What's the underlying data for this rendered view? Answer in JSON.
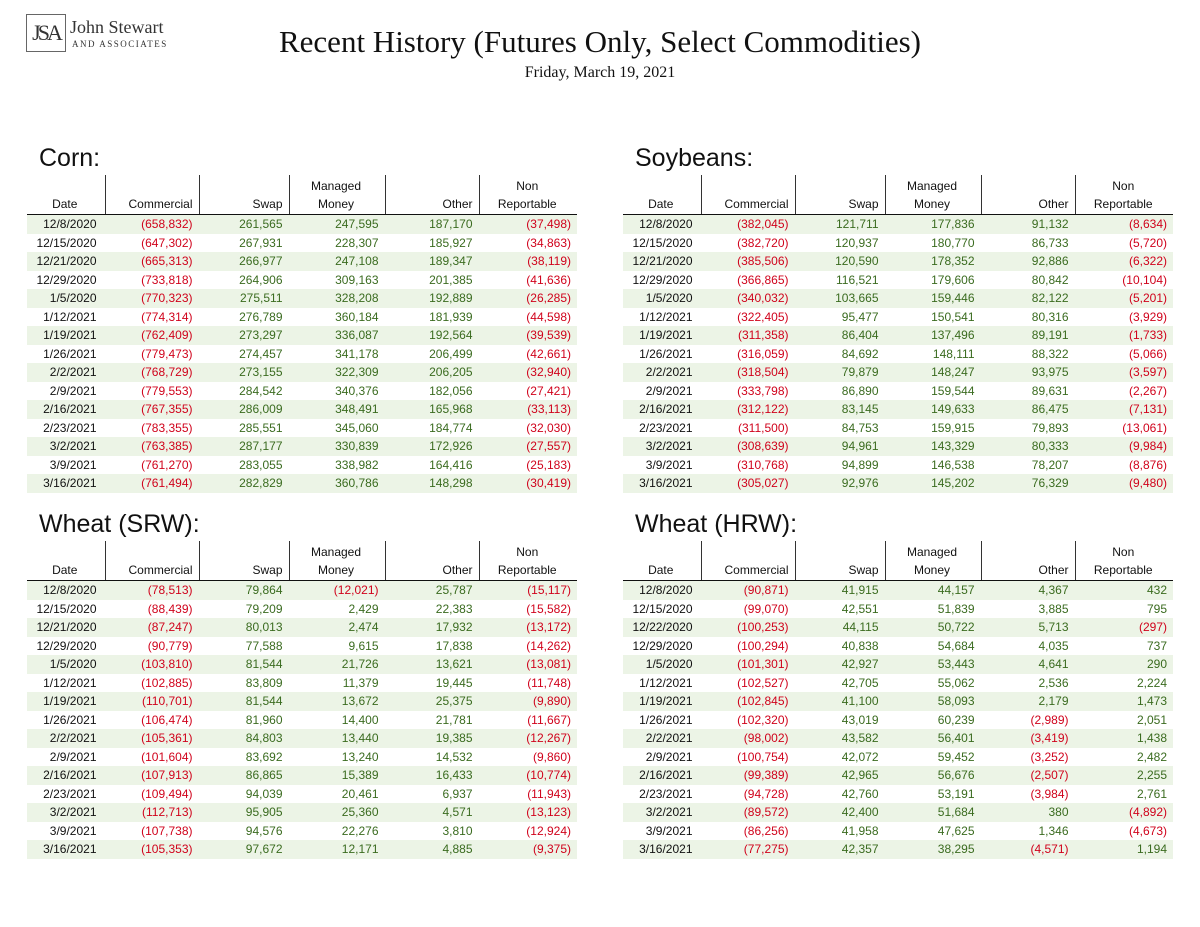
{
  "logo": {
    "mark": "JSA",
    "name": "John Stewart",
    "sub": "AND ASSOCIATES"
  },
  "title": "Recent History (Futures Only, Select Commodities)",
  "subtitle": "Friday, March 19, 2021",
  "colors": {
    "negative": "#d0021b",
    "positive": "#3a6b1f",
    "band": "#ecf4e6"
  },
  "headers": {
    "date": "Date",
    "commercial": "Commercial",
    "swap": "Swap",
    "managed_1": "Managed",
    "managed_2": "Money",
    "other": "Other",
    "nonrep_1": "Non",
    "nonrep_2": "Reportable"
  },
  "tables": [
    {
      "id": "corn",
      "title": "Corn:",
      "rows": [
        [
          "12/8/2020",
          "(658,832)",
          "261,565",
          "247,595",
          "187,170",
          "(37,498)"
        ],
        [
          "12/15/2020",
          "(647,302)",
          "267,931",
          "228,307",
          "185,927",
          "(34,863)"
        ],
        [
          "12/21/2020",
          "(665,313)",
          "266,977",
          "247,108",
          "189,347",
          "(38,119)"
        ],
        [
          "12/29/2020",
          "(733,818)",
          "264,906",
          "309,163",
          "201,385",
          "(41,636)"
        ],
        [
          "1/5/2020",
          "(770,323)",
          "275,511",
          "328,208",
          "192,889",
          "(26,285)"
        ],
        [
          "1/12/2021",
          "(774,314)",
          "276,789",
          "360,184",
          "181,939",
          "(44,598)"
        ],
        [
          "1/19/2021",
          "(762,409)",
          "273,297",
          "336,087",
          "192,564",
          "(39,539)"
        ],
        [
          "1/26/2021",
          "(779,473)",
          "274,457",
          "341,178",
          "206,499",
          "(42,661)"
        ],
        [
          "2/2/2021",
          "(768,729)",
          "273,155",
          "322,309",
          "206,205",
          "(32,940)"
        ],
        [
          "2/9/2021",
          "(779,553)",
          "284,542",
          "340,376",
          "182,056",
          "(27,421)"
        ],
        [
          "2/16/2021",
          "(767,355)",
          "286,009",
          "348,491",
          "165,968",
          "(33,113)"
        ],
        [
          "2/23/2021",
          "(783,355)",
          "285,551",
          "345,060",
          "184,774",
          "(32,030)"
        ],
        [
          "3/2/2021",
          "(763,385)",
          "287,177",
          "330,839",
          "172,926",
          "(27,557)"
        ],
        [
          "3/9/2021",
          "(761,270)",
          "283,055",
          "338,982",
          "164,416",
          "(25,183)"
        ],
        [
          "3/16/2021",
          "(761,494)",
          "282,829",
          "360,786",
          "148,298",
          "(30,419)"
        ]
      ]
    },
    {
      "id": "soybeans",
      "title": "Soybeans:",
      "rows": [
        [
          "12/8/2020",
          "(382,045)",
          "121,711",
          "177,836",
          "91,132",
          "(8,634)"
        ],
        [
          "12/15/2020",
          "(382,720)",
          "120,937",
          "180,770",
          "86,733",
          "(5,720)"
        ],
        [
          "12/21/2020",
          "(385,506)",
          "120,590",
          "178,352",
          "92,886",
          "(6,322)"
        ],
        [
          "12/29/2020",
          "(366,865)",
          "116,521",
          "179,606",
          "80,842",
          "(10,104)"
        ],
        [
          "1/5/2020",
          "(340,032)",
          "103,665",
          "159,446",
          "82,122",
          "(5,201)"
        ],
        [
          "1/12/2021",
          "(322,405)",
          "95,477",
          "150,541",
          "80,316",
          "(3,929)"
        ],
        [
          "1/19/2021",
          "(311,358)",
          "86,404",
          "137,496",
          "89,191",
          "(1,733)"
        ],
        [
          "1/26/2021",
          "(316,059)",
          "84,692",
          "148,111",
          "88,322",
          "(5,066)"
        ],
        [
          "2/2/2021",
          "(318,504)",
          "79,879",
          "148,247",
          "93,975",
          "(3,597)"
        ],
        [
          "2/9/2021",
          "(333,798)",
          "86,890",
          "159,544",
          "89,631",
          "(2,267)"
        ],
        [
          "2/16/2021",
          "(312,122)",
          "83,145",
          "149,633",
          "86,475",
          "(7,131)"
        ],
        [
          "2/23/2021",
          "(311,500)",
          "84,753",
          "159,915",
          "79,893",
          "(13,061)"
        ],
        [
          "3/2/2021",
          "(308,639)",
          "94,961",
          "143,329",
          "80,333",
          "(9,984)"
        ],
        [
          "3/9/2021",
          "(310,768)",
          "94,899",
          "146,538",
          "78,207",
          "(8,876)"
        ],
        [
          "3/16/2021",
          "(305,027)",
          "92,976",
          "145,202",
          "76,329",
          "(9,480)"
        ]
      ]
    },
    {
      "id": "wheat-srw",
      "title": "Wheat (SRW):",
      "rows": [
        [
          "12/8/2020",
          "(78,513)",
          "79,864",
          "(12,021)",
          "25,787",
          "(15,117)"
        ],
        [
          "12/15/2020",
          "(88,439)",
          "79,209",
          "2,429",
          "22,383",
          "(15,582)"
        ],
        [
          "12/21/2020",
          "(87,247)",
          "80,013",
          "2,474",
          "17,932",
          "(13,172)"
        ],
        [
          "12/29/2020",
          "(90,779)",
          "77,588",
          "9,615",
          "17,838",
          "(14,262)"
        ],
        [
          "1/5/2020",
          "(103,810)",
          "81,544",
          "21,726",
          "13,621",
          "(13,081)"
        ],
        [
          "1/12/2021",
          "(102,885)",
          "83,809",
          "11,379",
          "19,445",
          "(11,748)"
        ],
        [
          "1/19/2021",
          "(110,701)",
          "81,544",
          "13,672",
          "25,375",
          "(9,890)"
        ],
        [
          "1/26/2021",
          "(106,474)",
          "81,960",
          "14,400",
          "21,781",
          "(11,667)"
        ],
        [
          "2/2/2021",
          "(105,361)",
          "84,803",
          "13,440",
          "19,385",
          "(12,267)"
        ],
        [
          "2/9/2021",
          "(101,604)",
          "83,692",
          "13,240",
          "14,532",
          "(9,860)"
        ],
        [
          "2/16/2021",
          "(107,913)",
          "86,865",
          "15,389",
          "16,433",
          "(10,774)"
        ],
        [
          "2/23/2021",
          "(109,494)",
          "94,039",
          "20,461",
          "6,937",
          "(11,943)"
        ],
        [
          "3/2/2021",
          "(112,713)",
          "95,905",
          "25,360",
          "4,571",
          "(13,123)"
        ],
        [
          "3/9/2021",
          "(107,738)",
          "94,576",
          "22,276",
          "3,810",
          "(12,924)"
        ],
        [
          "3/16/2021",
          "(105,353)",
          "97,672",
          "12,171",
          "4,885",
          "(9,375)"
        ]
      ]
    },
    {
      "id": "wheat-hrw",
      "title": "Wheat (HRW):",
      "rows": [
        [
          "12/8/2020",
          "(90,871)",
          "41,915",
          "44,157",
          "4,367",
          "432"
        ],
        [
          "12/15/2020",
          "(99,070)",
          "42,551",
          "51,839",
          "3,885",
          "795"
        ],
        [
          "12/22/2020",
          "(100,253)",
          "44,115",
          "50,722",
          "5,713",
          "(297)"
        ],
        [
          "12/29/2020",
          "(100,294)",
          "40,838",
          "54,684",
          "4,035",
          "737"
        ],
        [
          "1/5/2020",
          "(101,301)",
          "42,927",
          "53,443",
          "4,641",
          "290"
        ],
        [
          "1/12/2021",
          "(102,527)",
          "42,705",
          "55,062",
          "2,536",
          "2,224"
        ],
        [
          "1/19/2021",
          "(102,845)",
          "41,100",
          "58,093",
          "2,179",
          "1,473"
        ],
        [
          "1/26/2021",
          "(102,320)",
          "43,019",
          "60,239",
          "(2,989)",
          "2,051"
        ],
        [
          "2/2/2021",
          "(98,002)",
          "43,582",
          "56,401",
          "(3,419)",
          "1,438"
        ],
        [
          "2/9/2021",
          "(100,754)",
          "42,072",
          "59,452",
          "(3,252)",
          "2,482"
        ],
        [
          "2/16/2021",
          "(99,389)",
          "42,965",
          "56,676",
          "(2,507)",
          "2,255"
        ],
        [
          "2/23/2021",
          "(94,728)",
          "42,760",
          "53,191",
          "(3,984)",
          "2,761"
        ],
        [
          "3/2/2021",
          "(89,572)",
          "42,400",
          "51,684",
          "380",
          "(4,892)"
        ],
        [
          "3/9/2021",
          "(86,256)",
          "41,958",
          "47,625",
          "1,346",
          "(4,673)"
        ],
        [
          "3/16/2021",
          "(77,275)",
          "42,357",
          "38,295",
          "(4,571)",
          "1,194"
        ]
      ]
    }
  ]
}
